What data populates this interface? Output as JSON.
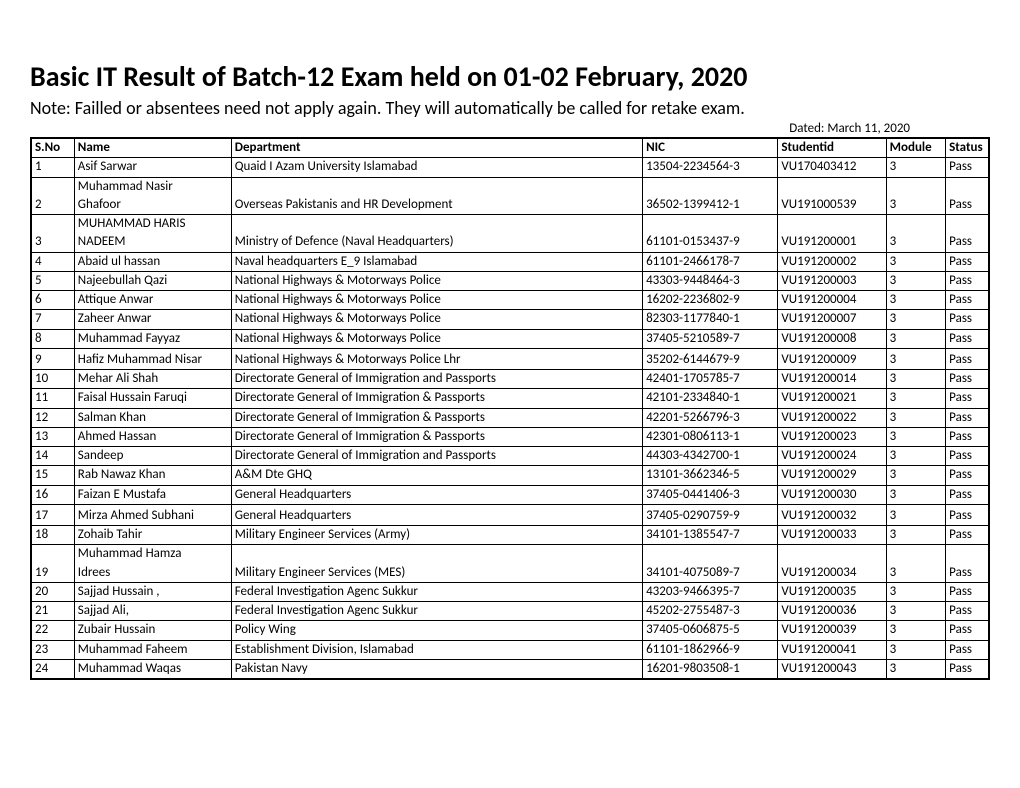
{
  "title": "Basic IT Result of Batch-12 Exam held on 01-02  February, 2020",
  "note": "Note: Failled or absentees need not apply again.  They will automatically be called for retake exam.",
  "date_line": "Dated: March 11, 2020",
  "columns": {
    "sno": "S.No",
    "name": "Name",
    "dept": "Department",
    "nic": "NIC",
    "sid": "Studentid",
    "mod": "Module",
    "stat": "Status"
  },
  "rows": [
    {
      "sno": "1",
      "name": "Asif Sarwar",
      "dept": "Quaid I Azam University Islamabad",
      "nic": "13504-2234564-3",
      "sid": "VU170403412",
      "mod": "3",
      "stat": "Pass"
    },
    {
      "sno": "2",
      "name_top": "Muhammad Nasir",
      "name": "Ghafoor",
      "dept": "Overseas Pakistanis and HR Development",
      "nic": "36502-1399412-1",
      "sid": "VU191000539",
      "mod": "3",
      "stat": "Pass",
      "wrap": true
    },
    {
      "sno": "3",
      "name_top": "MUHAMMAD HARIS",
      "name": "NADEEM",
      "dept": "Ministry of Defence (Naval Headquarters)",
      "nic": "61101-0153437-9",
      "sid": "VU191200001",
      "mod": "3",
      "stat": "Pass",
      "wrap": true
    },
    {
      "sno": "4",
      "name": "Abaid ul hassan",
      "dept": "Naval headquarters E_9 Islamabad",
      "nic": "61101-2466178-7",
      "sid": "VU191200002",
      "mod": "3",
      "stat": "Pass"
    },
    {
      "sno": "5",
      "name": "Najeebullah Qazi",
      "dept": "National Highways & Motorways Police",
      "nic": "43303-9448464-3",
      "sid": "VU191200003",
      "mod": "3",
      "stat": "Pass"
    },
    {
      "sno": "6",
      "name": "Attique Anwar",
      "dept": "National Highways & Motorways Police",
      "nic": "16202-2236802-9",
      "sid": "VU191200004",
      "mod": "3",
      "stat": "Pass"
    },
    {
      "sno": "7",
      "name": "Zaheer Anwar",
      "dept": "National Highways & Motorways Police",
      "nic": "82303-1177840-1",
      "sid": "VU191200007",
      "mod": "3",
      "stat": "Pass"
    },
    {
      "sno": "8",
      "name": "Muhammad Fayyaz",
      "dept": "National Highways & Motorways Police",
      "nic": "37405-5210589-7",
      "sid": "VU191200008",
      "mod": "3",
      "stat": "Pass"
    },
    {
      "sno": "9",
      "name_top": "",
      "name": "Hafiz Muhammad Nisar",
      "dept": "National Highways & Motorways Police Lhr",
      "nic": "35202-6144679-9",
      "sid": "VU191200009",
      "mod": "3",
      "stat": "Pass",
      "wrap": true
    },
    {
      "sno": "10",
      "name": "Mehar Ali Shah",
      "dept": "Directorate General of Immigration and Passports",
      "nic": "42401-1705785-7",
      "sid": "VU191200014",
      "mod": "3",
      "stat": "Pass"
    },
    {
      "sno": "11",
      "name": "Faisal Hussain Faruqi",
      "dept": "Directorate General of Immigration & Passports",
      "nic": "42101-2334840-1",
      "sid": "VU191200021",
      "mod": "3",
      "stat": "Pass"
    },
    {
      "sno": "12",
      "name": "Salman Khan",
      "dept": "Directorate General of Immigration & Passports",
      "nic": "42201-5266796-3",
      "sid": "VU191200022",
      "mod": "3",
      "stat": "Pass"
    },
    {
      "sno": "13",
      "name": "Ahmed Hassan",
      "dept": "Directorate General of Immigration & Passports",
      "nic": "42301-0806113-1",
      "sid": "VU191200023",
      "mod": "3",
      "stat": "Pass"
    },
    {
      "sno": "14",
      "name": "Sandeep",
      "dept": "Directorate General of Immigration and Passports",
      "nic": "44303-4342700-1",
      "sid": "VU191200024",
      "mod": "3",
      "stat": "Pass"
    },
    {
      "sno": "15",
      "name": "Rab Nawaz Khan",
      "dept": "A&M Dte GHQ",
      "nic": "13101-3662346-5",
      "sid": "VU191200029",
      "mod": "3",
      "stat": "Pass"
    },
    {
      "sno": "16",
      "name": "Faizan E Mustafa",
      "dept": "General Headquarters",
      "nic": "37405-0441406-3",
      "sid": "VU191200030",
      "mod": "3",
      "stat": "Pass"
    },
    {
      "sno": "17",
      "name_top": "",
      "name": "Mirza Ahmed Subhani",
      "dept": "General Headquarters",
      "nic": "37405-0290759-9",
      "sid": "VU191200032",
      "mod": "3",
      "stat": "Pass",
      "wrap": true
    },
    {
      "sno": "18",
      "name": "Zohaib Tahir",
      "dept": "Military Engineer Services (Army)",
      "nic": "34101-1385547-7",
      "sid": "VU191200033",
      "mod": "3",
      "stat": "Pass"
    },
    {
      "sno": "19",
      "name_top": "Muhammad Hamza",
      "name": "Idrees",
      "dept": "Military Engineer Services (MES)",
      "nic": "34101-4075089-7",
      "sid": "VU191200034",
      "mod": "3",
      "stat": "Pass",
      "wrap": true
    },
    {
      "sno": "20",
      "name": "Sajjad Hussain ,",
      "dept": "Federal Investigation Agenc Sukkur",
      "nic": "43203-9466395-7",
      "sid": "VU191200035",
      "mod": "3",
      "stat": "Pass"
    },
    {
      "sno": "21",
      "name": "Sajjad Ali,",
      "dept": "Federal Investigation Agenc Sukkur",
      "nic": "45202-2755487-3",
      "sid": "VU191200036",
      "mod": "3",
      "stat": "Pass"
    },
    {
      "sno": "22",
      "name": "Zubair Hussain",
      "dept": "Policy Wing",
      "nic": "37405-0606875-5",
      "sid": "VU191200039",
      "mod": "3",
      "stat": "Pass"
    },
    {
      "sno": "23",
      "name": "Muhammad Faheem",
      "dept": "Establishment Division, Islamabad",
      "nic": "61101-1862966-9",
      "sid": "VU191200041",
      "mod": "3",
      "stat": "Pass"
    },
    {
      "sno": "24",
      "name": "Muhammad Waqas",
      "dept": "Pakistan Navy",
      "nic": "16201-9803508-1",
      "sid": "VU191200043",
      "mod": "3",
      "stat": "Pass"
    }
  ]
}
